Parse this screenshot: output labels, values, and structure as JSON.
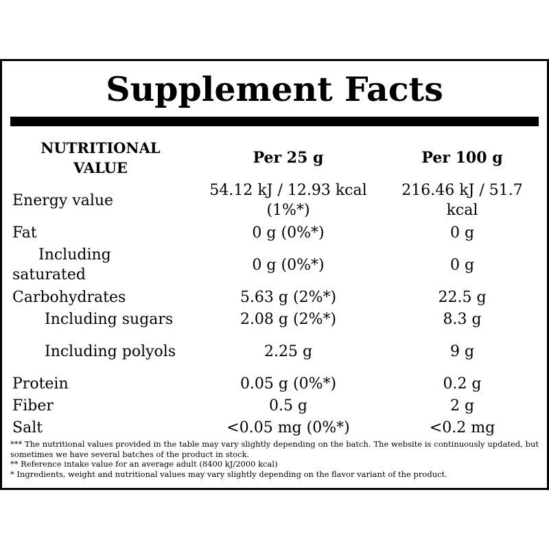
{
  "title": "Supplement Facts",
  "table": {
    "header": [
      "NUTRITIONAL VALUE",
      "Per 25 g",
      "Per 100 g"
    ],
    "rows": [
      [
        "Energy value",
        "54.12 kJ / 12.93 kcal (1%*)",
        "216.46 kJ / 51.7 kcal"
      ],
      [
        "Fat",
        "0 g (0%*)",
        "0 g"
      ],
      [
        "Including saturated",
        "0 g (0%*)",
        "0 g"
      ],
      [
        "Carbohydrates",
        "5.63 g (2%*)",
        "22.5 g"
      ],
      [
        "Including sugars",
        "2.08 g (2%*)",
        "8.3 g"
      ],
      [
        "Including polyols",
        "2.25 g",
        "9 g"
      ],
      [
        "Protein",
        "0.05 g (0%*)",
        "0.2 g"
      ],
      [
        "Fiber",
        "0.5 g",
        "2 g"
      ],
      [
        "Salt",
        "<0.05 mg (0%*)",
        "<0.2 mg"
      ]
    ]
  },
  "footnotes": [
    "*** The nutritional values provided in the table may vary slightly depending on the batch. The website is continuously updated, but sometimes we have several batches of the product in stock.",
    "** Reference intake value for an average adult (8400 kJ/2000 kcal)",
    "* Ingredients, weight and nutritional values may vary slightly depending on the flavor variant of the product."
  ]
}
